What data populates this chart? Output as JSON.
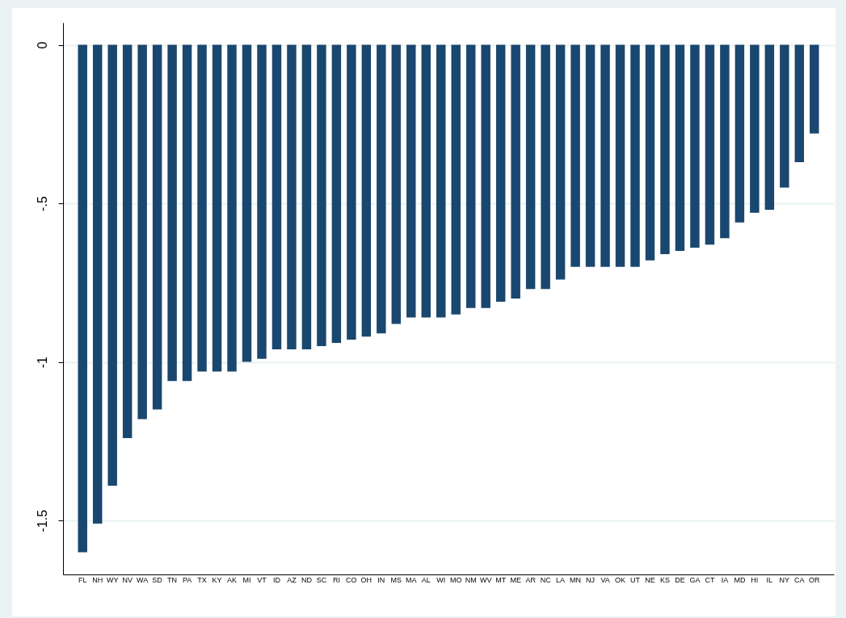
{
  "chart_data": {
    "type": "bar",
    "categories": [
      "FL",
      "NH",
      "WY",
      "NV",
      "WA",
      "SD",
      "TN",
      "PA",
      "TX",
      "KY",
      "AK",
      "MI",
      "VT",
      "ID",
      "AZ",
      "ND",
      "SC",
      "RI",
      "CO",
      "OH",
      "IN",
      "MS",
      "MA",
      "AL",
      "WI",
      "MO",
      "NM",
      "WV",
      "MT",
      "ME",
      "AR",
      "NC",
      "LA",
      "MN",
      "NJ",
      "VA",
      "OK",
      "UT",
      "NE",
      "KS",
      "DE",
      "GA",
      "CT",
      "IA",
      "MD",
      "HI",
      "IL",
      "NY",
      "CA",
      "OR"
    ],
    "values": [
      -1.6,
      -1.51,
      -1.39,
      -1.24,
      -1.18,
      -1.15,
      -1.06,
      -1.06,
      -1.03,
      -1.03,
      -1.03,
      -1.0,
      -0.99,
      -0.96,
      -0.96,
      -0.96,
      -0.95,
      -0.94,
      -0.93,
      -0.92,
      -0.91,
      -0.88,
      -0.86,
      -0.86,
      -0.86,
      -0.85,
      -0.83,
      -0.83,
      -0.81,
      -0.8,
      -0.77,
      -0.77,
      -0.74,
      -0.7,
      -0.7,
      -0.7,
      -0.7,
      -0.7,
      -0.68,
      -0.66,
      -0.65,
      -0.64,
      -0.63,
      -0.61,
      -0.56,
      -0.53,
      -0.52,
      -0.45,
      -0.37,
      -0.28
    ],
    "color": "#1a476f",
    "ylim": [
      -1.67,
      0.07
    ],
    "yticks": [
      0,
      {
        "value": -0.5,
        "label": "-.5"
      },
      -1,
      {
        "value": -1.5,
        "label": "-1.5"
      }
    ],
    "grid": "y"
  }
}
